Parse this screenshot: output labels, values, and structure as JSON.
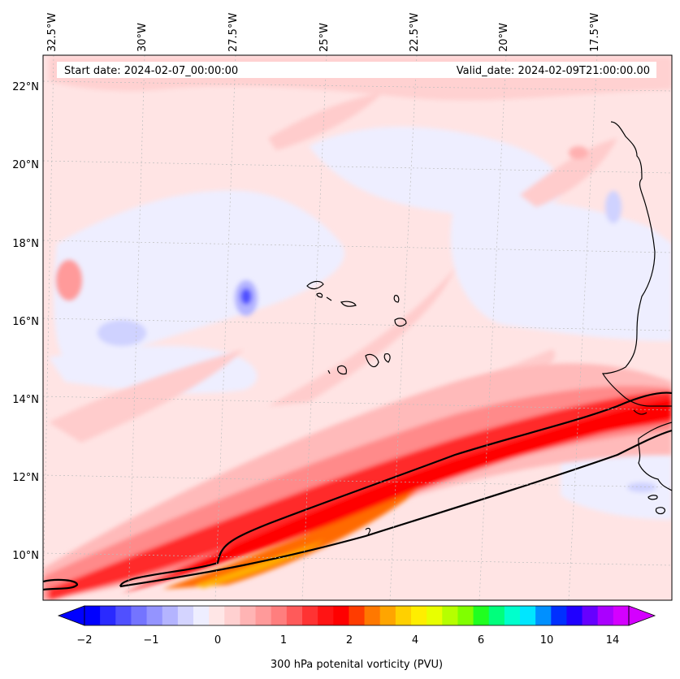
{
  "header": {
    "start_label": "Start date: 2024-02-07_00:00:00",
    "valid_label": "Valid_date: 2024-02-09T21:00:00.00"
  },
  "map": {
    "lon_labels": [
      "32.5°W",
      "30°W",
      "27.5°W",
      "25°W",
      "22.5°W",
      "20°W",
      "17.5°W"
    ],
    "lat_labels": [
      "22°N",
      "20°N",
      "18°N",
      "16°N",
      "14°N",
      "12°N",
      "10°N"
    ],
    "contour_label": "2"
  },
  "colorbar": {
    "ticks": [
      "−2",
      "−1",
      "0",
      "1",
      "2",
      "4",
      "6",
      "10",
      "14"
    ],
    "label": "300 hPa potenital vorticity (PVU)",
    "colors": [
      "#0000ff",
      "#2a2aff",
      "#5050ff",
      "#7474ff",
      "#9494ff",
      "#b4b4ff",
      "#d4d4ff",
      "#eeeeff",
      "#ffe6e6",
      "#ffd0d0",
      "#ffb4b4",
      "#ff9a9a",
      "#ff7e7e",
      "#ff5a5a",
      "#ff3333",
      "#ff1414",
      "#ff0000",
      "#ff3c00",
      "#ff7800",
      "#ffa500",
      "#ffd000",
      "#ffee00",
      "#e8ff00",
      "#b6ff00",
      "#80ff00",
      "#20ff20",
      "#00ff7c",
      "#00ffcc",
      "#00e6ff",
      "#0090ff",
      "#0030ff",
      "#2000ff",
      "#6600ff",
      "#aa00ff",
      "#d400ff"
    ],
    "extend_low_color": "#0000ff",
    "extend_high_color": "#d400ff"
  }
}
